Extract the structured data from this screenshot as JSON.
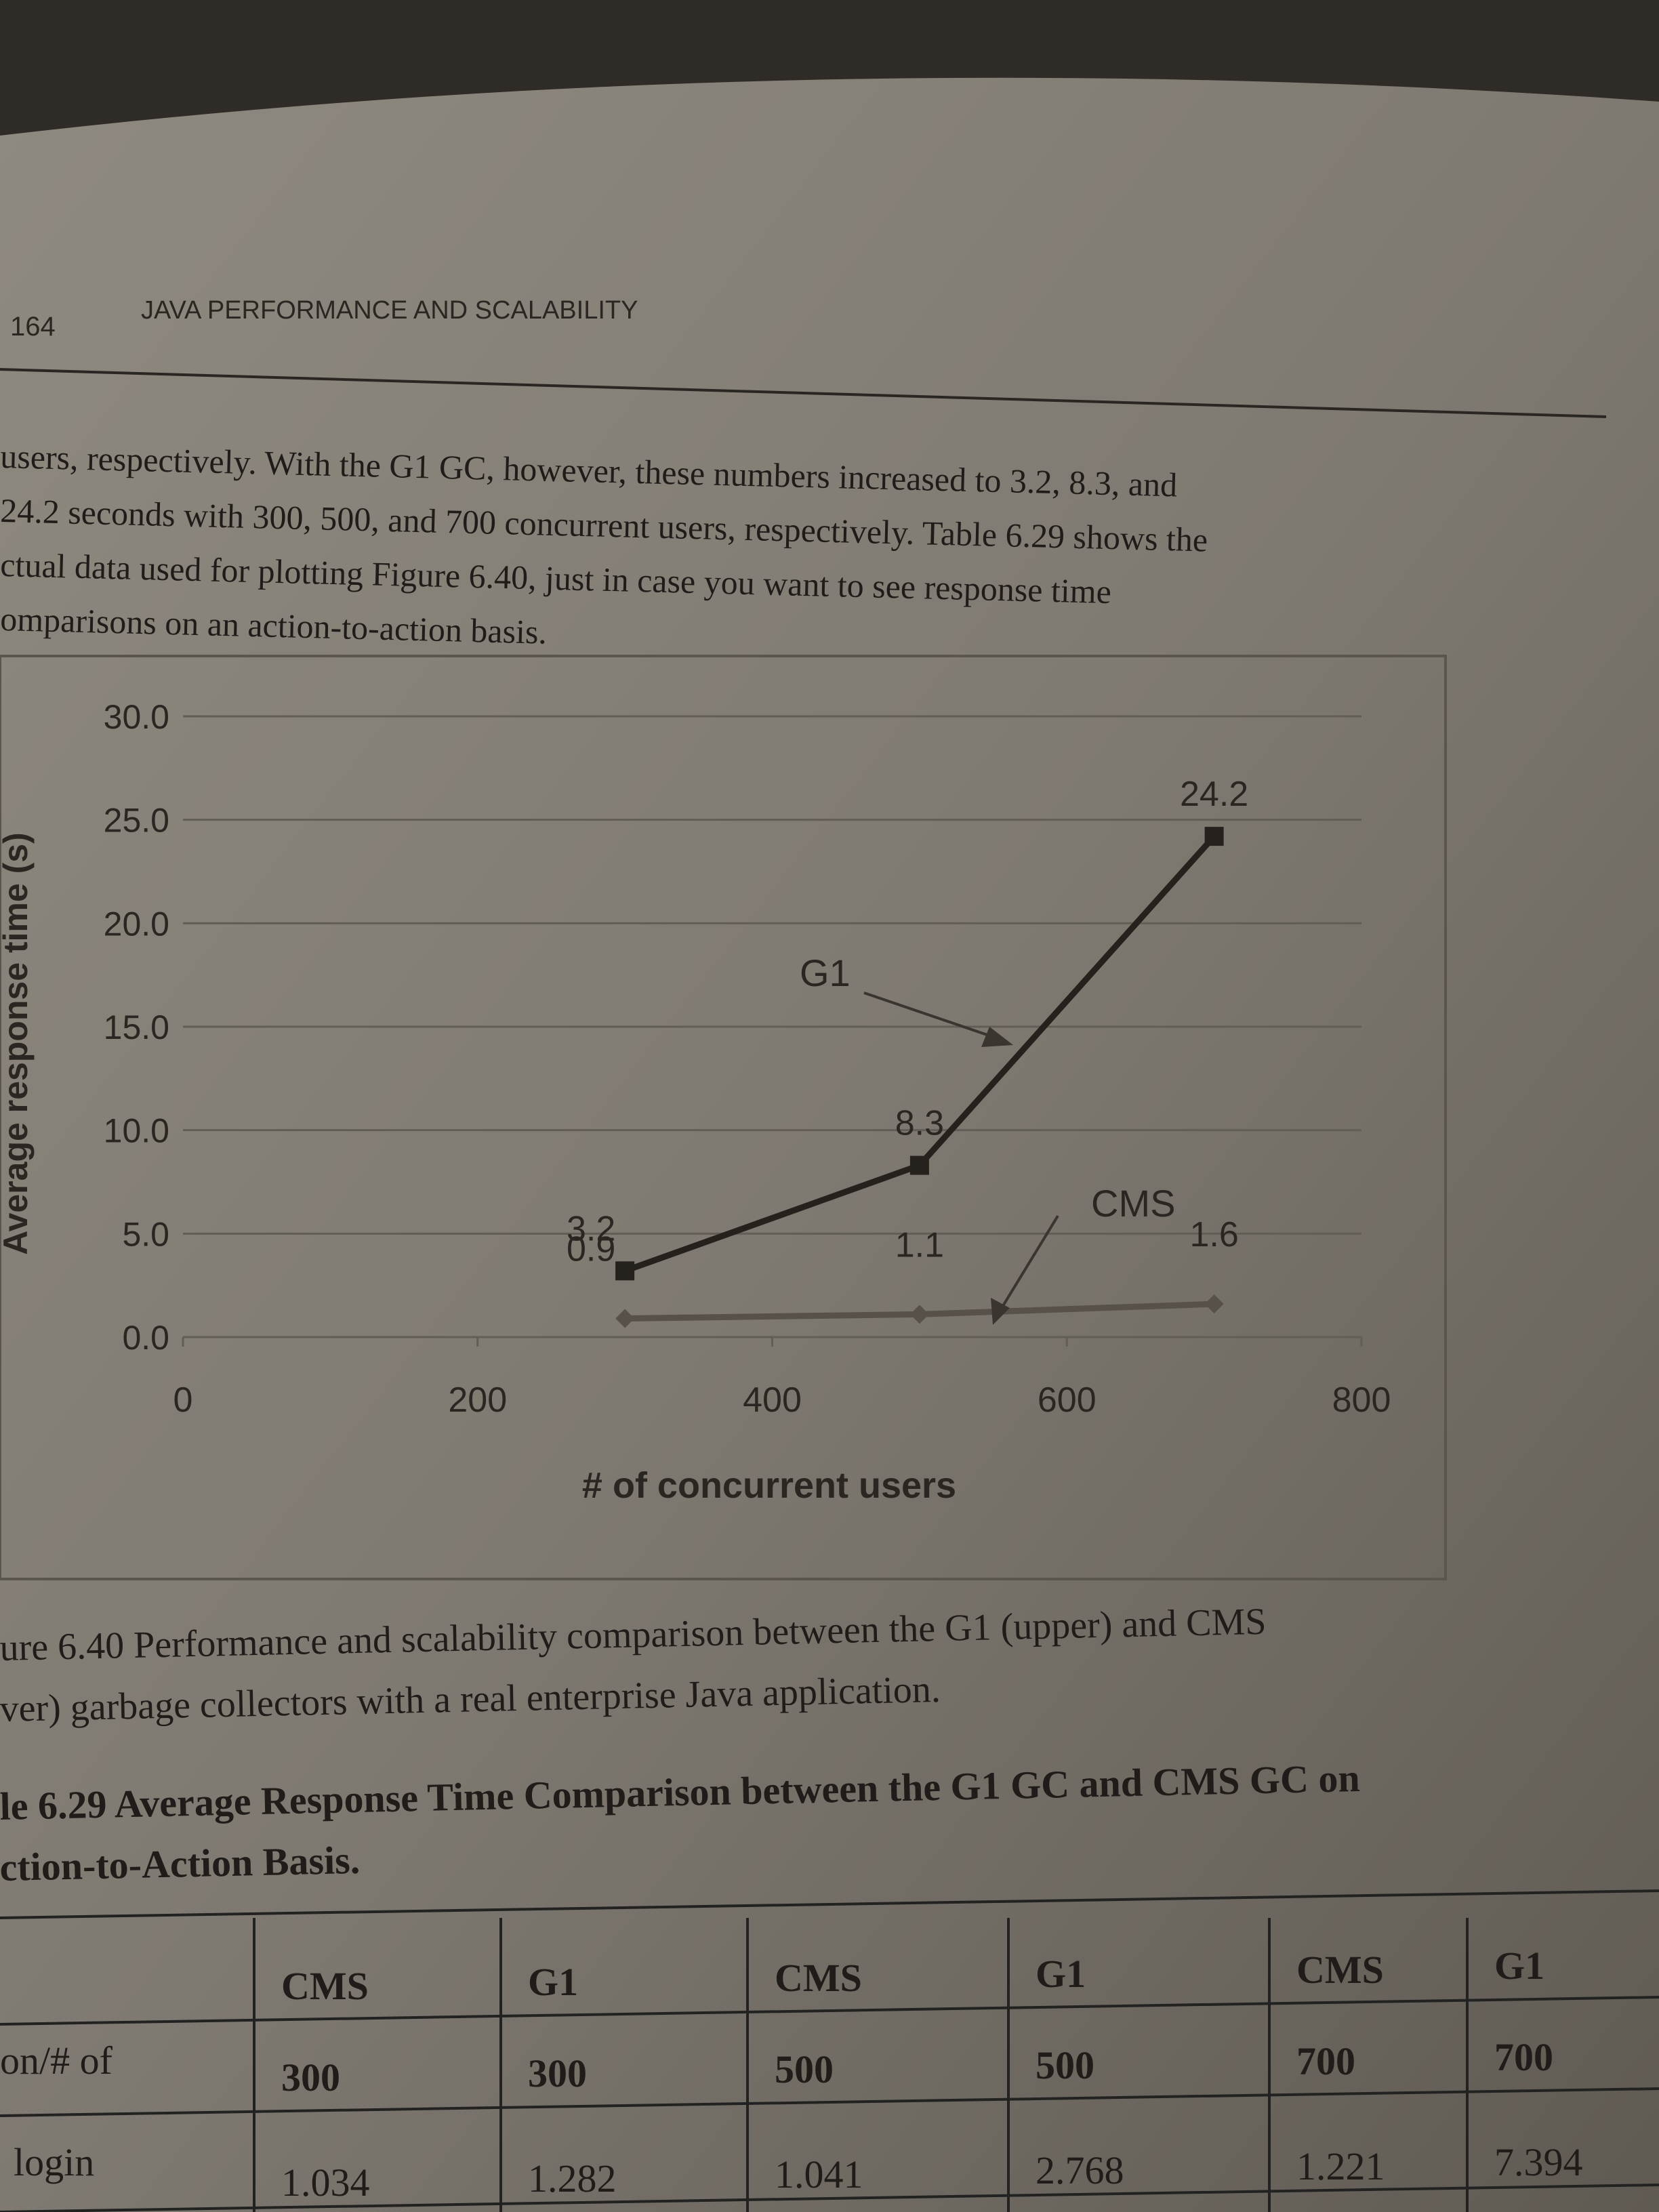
{
  "header": {
    "page_number": "164",
    "running_title": "JAVA PERFORMANCE AND SCALABILITY"
  },
  "paragraph": [
    "users, respectively. With the G1 GC, however, these numbers increased to 3.2, 8.3, and",
    "24.2 seconds with 300, 500, and 700 concurrent users, respectively. Table 6.29 shows the",
    "ctual data used for plotting Figure 6.40, just in case you want to see response time",
    "omparisons on an action-to-action basis."
  ],
  "chart_data": {
    "type": "line",
    "xlabel": "# of concurrent users",
    "ylabel": "Average response time (s)",
    "x": [
      300,
      500,
      700
    ],
    "series": [
      {
        "name": "G1",
        "color": "#25211d",
        "values": [
          3.2,
          8.3,
          24.2
        ]
      },
      {
        "name": "CMS",
        "color": "#57514a",
        "values": [
          0.9,
          1.1,
          1.6
        ]
      }
    ],
    "xlim": [
      0,
      800
    ],
    "xticks": [
      0,
      200,
      400,
      600,
      800
    ],
    "ylim": [
      0,
      30
    ],
    "yticks": [
      {
        "value": 0,
        "label": "0.0"
      },
      {
        "value": 5,
        "label": "5.0"
      },
      {
        "value": 10,
        "label": "10.0"
      },
      {
        "value": 15,
        "label": "15.0"
      },
      {
        "value": 20,
        "label": "20.0"
      },
      {
        "value": 25,
        "label": "25.0"
      },
      {
        "value": 30,
        "label": "30.0"
      }
    ],
    "grid": true
  },
  "figure_caption": [
    "ure 6.40 Performance and scalability comparison between the G1 (upper) and CMS",
    "ver) garbage collectors with a real enterprise Java application."
  ],
  "table_caption": [
    "le 6.29 Average Response Time Comparison between the G1 GC and CMS GC on",
    "ction-to-Action Basis."
  ],
  "table": {
    "users_label": "on/# of",
    "columns": [
      {
        "gc": "CMS",
        "users": 300
      },
      {
        "gc": "G1",
        "users": 300
      },
      {
        "gc": "CMS",
        "users": 500
      },
      {
        "gc": "G1",
        "users": 500
      },
      {
        "gc": "CMS",
        "users": 700
      },
      {
        "gc": "G1",
        "users": 700
      }
    ],
    "rows": [
      {
        "label": "login",
        "values": [
          1.034,
          1.282,
          1.041,
          2.768,
          1.221,
          7.394
        ]
      }
    ]
  }
}
